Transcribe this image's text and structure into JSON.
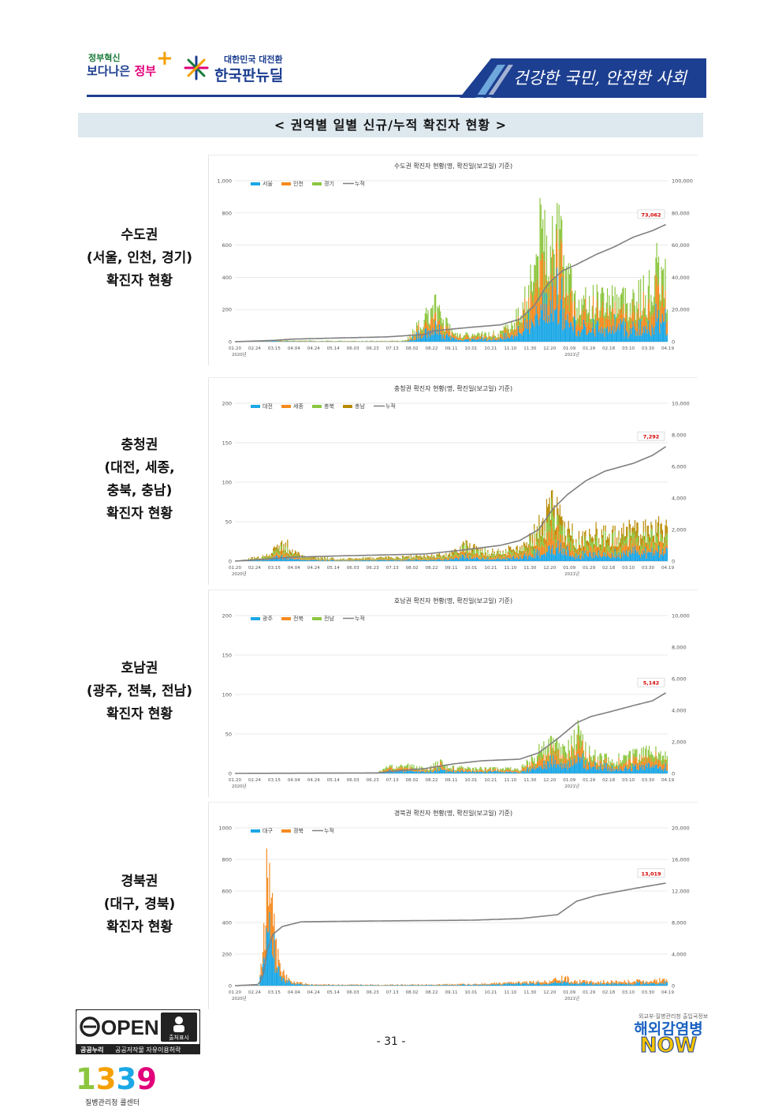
{
  "header": {
    "logo1_small": "정부혁신",
    "logo1_big_a": "보다나은",
    "logo1_big_b": "정부",
    "logo2_small": "대한민국 대전환",
    "logo2_big": "한국판뉴딜",
    "slogan": "건강한 국민, 안전한 사회",
    "colors": {
      "navy": "#1d3f91",
      "green": "#1a7a3a",
      "pink": "#e2007a",
      "orange": "#f5a000"
    }
  },
  "section_title": "< 권역별 일별 신규/누적 확진자 현황 >",
  "regions": [
    {
      "lines": [
        "수도권",
        "(서울, 인천, 경기)",
        "확진자 현황"
      ]
    },
    {
      "lines": [
        "충청권",
        "(대전, 세종,",
        "충북, 충남)",
        "확진자 현황"
      ]
    },
    {
      "lines": [
        "호남권",
        "(광주, 전북, 전남)",
        "확진자 현황"
      ]
    },
    {
      "lines": [
        "경북권",
        "(대구, 경북)",
        "확진자 현황"
      ]
    }
  ],
  "chart_data": [
    {
      "type": "bar",
      "title": "수도권 확진자 현황(명, 확진일(보고일) 기준)",
      "series": [
        {
          "name": "서울",
          "color": "#1aa7e6"
        },
        {
          "name": "인천",
          "color": "#f58a1f"
        },
        {
          "name": "경기",
          "color": "#8cc63f"
        },
        {
          "name": "누적",
          "color": "#808080",
          "type": "line"
        }
      ],
      "ylim": [
        0,
        1000
      ],
      "y_ticks": [
        "1,000",
        "800",
        "600",
        "400",
        "200",
        "0"
      ],
      "y2lim": [
        0,
        100000
      ],
      "y2_ticks": [
        "100,000",
        "80,000",
        "60,000",
        "40,000",
        "20,000",
        "0"
      ],
      "x_ticks": [
        "01.20",
        "02.24",
        "03.15",
        "04.04",
        "04.24",
        "05.14",
        "06.03",
        "06.23",
        "07.13",
        "08.02",
        "08.22",
        "09.11",
        "10.01",
        "10.21",
        "11.10",
        "11.30",
        "12.20",
        "01.09",
        "01.29",
        "02.18",
        "03.10",
        "03.30",
        "04.19"
      ],
      "year_labels": [
        "2020년",
        "2021년"
      ],
      "final_cumulative": "73,062",
      "bar_levels": [
        [
          0,
          1
        ],
        [
          45,
          10
        ],
        [
          75,
          8
        ],
        [
          100,
          5
        ],
        [
          175,
          6
        ],
        [
          180,
          10
        ],
        [
          210,
          230
        ],
        [
          220,
          140
        ],
        [
          230,
          45
        ],
        [
          250,
          45
        ],
        [
          280,
          55
        ],
        [
          300,
          190
        ],
        [
          315,
          520
        ],
        [
          325,
          800
        ],
        [
          330,
          720
        ],
        [
          345,
          600
        ],
        [
          352,
          380
        ],
        [
          360,
          220
        ],
        [
          375,
          280
        ],
        [
          395,
          300
        ],
        [
          415,
          280
        ],
        [
          435,
          330
        ],
        [
          445,
          480
        ],
        [
          455,
          380
        ]
      ],
      "cumulative_curve": [
        [
          0,
          0
        ],
        [
          40,
          800
        ],
        [
          60,
          1600
        ],
        [
          100,
          2200
        ],
        [
          160,
          3000
        ],
        [
          200,
          4500
        ],
        [
          210,
          6800
        ],
        [
          240,
          8500
        ],
        [
          280,
          10500
        ],
        [
          300,
          14000
        ],
        [
          315,
          22000
        ],
        [
          330,
          36000
        ],
        [
          345,
          44000
        ],
        [
          360,
          48000
        ],
        [
          380,
          54000
        ],
        [
          400,
          59000
        ],
        [
          420,
          65000
        ],
        [
          440,
          69000
        ],
        [
          455,
          73062
        ]
      ]
    },
    {
      "type": "bar",
      "title": "충청권 확진자 현황(명, 확진일(보고일) 기준)",
      "series": [
        {
          "name": "대전",
          "color": "#1aa7e6"
        },
        {
          "name": "세종",
          "color": "#f58a1f"
        },
        {
          "name": "충북",
          "color": "#8cc63f"
        },
        {
          "name": "충남",
          "color": "#b88a00"
        },
        {
          "name": "누적",
          "color": "#808080",
          "type": "line"
        }
      ],
      "ylim": [
        0,
        200
      ],
      "y_ticks": [
        "200",
        "150",
        "100",
        "50",
        "0"
      ],
      "y2lim": [
        0,
        10000
      ],
      "y2_ticks": [
        "10,000",
        "8,000",
        "6,000",
        "4,000",
        "2,000",
        "0"
      ],
      "x_ticks": [
        "01.20",
        "02.24",
        "03.15",
        "04.04",
        "04.24",
        "05.14",
        "06.03",
        "06.23",
        "07.13",
        "08.02",
        "08.22",
        "09.11",
        "10.01",
        "10.21",
        "11.10",
        "11.30",
        "12.20",
        "01.09",
        "01.29",
        "02.18",
        "03.10",
        "03.30",
        "04.19"
      ],
      "year_labels": [
        "2020년",
        "2021년"
      ],
      "final_cumulative": "7,292",
      "bar_levels": [
        [
          0,
          0
        ],
        [
          35,
          8
        ],
        [
          50,
          25
        ],
        [
          70,
          6
        ],
        [
          110,
          3
        ],
        [
          160,
          5
        ],
        [
          200,
          6
        ],
        [
          225,
          10
        ],
        [
          240,
          22
        ],
        [
          270,
          12
        ],
        [
          300,
          18
        ],
        [
          320,
          45
        ],
        [
          335,
          75
        ],
        [
          345,
          50
        ],
        [
          360,
          30
        ],
        [
          375,
          40
        ],
        [
          395,
          35
        ],
        [
          415,
          40
        ],
        [
          435,
          45
        ],
        [
          455,
          40
        ]
      ],
      "cumulative_curve": [
        [
          0,
          0
        ],
        [
          35,
          140
        ],
        [
          60,
          250
        ],
        [
          110,
          330
        ],
        [
          200,
          450
        ],
        [
          240,
          700
        ],
        [
          280,
          1000
        ],
        [
          300,
          1300
        ],
        [
          320,
          2000
        ],
        [
          335,
          3300
        ],
        [
          350,
          4200
        ],
        [
          370,
          5100
        ],
        [
          390,
          5700
        ],
        [
          420,
          6200
        ],
        [
          440,
          6700
        ],
        [
          455,
          7292
        ]
      ]
    },
    {
      "type": "bar",
      "title": "호남권 확진자 현황(명, 확진일(보고일) 기준)",
      "series": [
        {
          "name": "광주",
          "color": "#1aa7e6"
        },
        {
          "name": "전북",
          "color": "#f58a1f"
        },
        {
          "name": "전남",
          "color": "#8cc63f"
        },
        {
          "name": "누적",
          "color": "#808080",
          "type": "line"
        }
      ],
      "ylim": [
        0,
        200
      ],
      "y_ticks": [
        "200",
        "150",
        "100",
        "50",
        "0"
      ],
      "y2lim": [
        0,
        10000
      ],
      "y2_ticks": [
        "10,000",
        "8,000",
        "6,000",
        "4,000",
        "2,000",
        "0"
      ],
      "x_ticks": [
        "01.20",
        "02.24",
        "03.15",
        "04.04",
        "04.24",
        "05.14",
        "06.03",
        "06.23",
        "07.13",
        "08.02",
        "08.22",
        "09.11",
        "10.01",
        "10.21",
        "11.10",
        "11.30",
        "12.20",
        "01.09",
        "01.29",
        "02.18",
        "03.10",
        "03.30",
        "04.19"
      ],
      "year_labels": [
        "2020년",
        "2021년"
      ],
      "final_cumulative": "5,142",
      "bar_levels": [
        [
          0,
          0
        ],
        [
          150,
          1
        ],
        [
          160,
          8
        ],
        [
          180,
          12
        ],
        [
          200,
          5
        ],
        [
          215,
          15
        ],
        [
          225,
          8
        ],
        [
          260,
          6
        ],
        [
          300,
          6
        ],
        [
          320,
          28
        ],
        [
          335,
          40
        ],
        [
          350,
          30
        ],
        [
          360,
          55
        ],
        [
          375,
          25
        ],
        [
          395,
          18
        ],
        [
          415,
          22
        ],
        [
          435,
          28
        ],
        [
          455,
          22
        ]
      ],
      "cumulative_curve": [
        [
          0,
          0
        ],
        [
          150,
          30
        ],
        [
          170,
          160
        ],
        [
          200,
          300
        ],
        [
          230,
          600
        ],
        [
          260,
          800
        ],
        [
          300,
          900
        ],
        [
          320,
          1300
        ],
        [
          340,
          2200
        ],
        [
          360,
          3200
        ],
        [
          375,
          3600
        ],
        [
          395,
          3900
        ],
        [
          420,
          4300
        ],
        [
          440,
          4600
        ],
        [
          455,
          5142
        ]
      ]
    },
    {
      "type": "bar",
      "title": "경북권 확진자 현황(명, 확진일(보고일) 기준)",
      "series": [
        {
          "name": "대구",
          "color": "#1aa7e6"
        },
        {
          "name": "경북",
          "color": "#f58a1f"
        },
        {
          "name": "누적",
          "color": "#808080",
          "type": "line"
        }
      ],
      "ylim": [
        0,
        1000
      ],
      "y_ticks": [
        "1000",
        "800",
        "600",
        "400",
        "200",
        "0"
      ],
      "y2lim": [
        0,
        20000
      ],
      "y2_ticks": [
        "20,000",
        "16,000",
        "12,000",
        "8,000",
        "4,000",
        "0"
      ],
      "x_ticks": [
        "01.20",
        "02.24",
        "03.15",
        "04.04",
        "04.24",
        "05.14",
        "06.03",
        "06.23",
        "07.13",
        "08.02",
        "08.22",
        "09.11",
        "10.01",
        "10.21",
        "11.10",
        "11.30",
        "12.20",
        "01.09",
        "01.29",
        "02.18",
        "03.10",
        "03.30",
        "04.19"
      ],
      "year_labels": [
        "2020년",
        "2021년"
      ],
      "final_cumulative": "13,019",
      "bar_levels": [
        [
          0,
          0
        ],
        [
          25,
          5
        ],
        [
          30,
          300
        ],
        [
          34,
          820
        ],
        [
          38,
          500
        ],
        [
          44,
          200
        ],
        [
          52,
          70
        ],
        [
          60,
          25
        ],
        [
          80,
          8
        ],
        [
          150,
          6
        ],
        [
          250,
          10
        ],
        [
          330,
          30
        ],
        [
          345,
          55
        ],
        [
          360,
          30
        ],
        [
          380,
          25
        ],
        [
          420,
          30
        ],
        [
          455,
          40
        ]
      ],
      "cumulative_curve": [
        [
          0,
          0
        ],
        [
          25,
          150
        ],
        [
          30,
          1500
        ],
        [
          34,
          4500
        ],
        [
          40,
          6500
        ],
        [
          50,
          7500
        ],
        [
          70,
          8100
        ],
        [
          150,
          8200
        ],
        [
          250,
          8300
        ],
        [
          300,
          8500
        ],
        [
          340,
          9000
        ],
        [
          360,
          10700
        ],
        [
          380,
          11400
        ],
        [
          420,
          12300
        ],
        [
          455,
          13019
        ]
      ]
    }
  ],
  "footer": {
    "open_word": "OPEN",
    "open_badge": "출처표시",
    "open_caption_a": "공공누리",
    "open_caption_b": "공공저작물 자유이용허락",
    "page_number": "- 31 -",
    "badge_small": "외교부·질병관리청 출입국정보",
    "badge_line1": "해외감염병",
    "badge_line2": "NOW",
    "hotline_number": "1339",
    "hotline_caption": "질병관리청 콜센터"
  }
}
